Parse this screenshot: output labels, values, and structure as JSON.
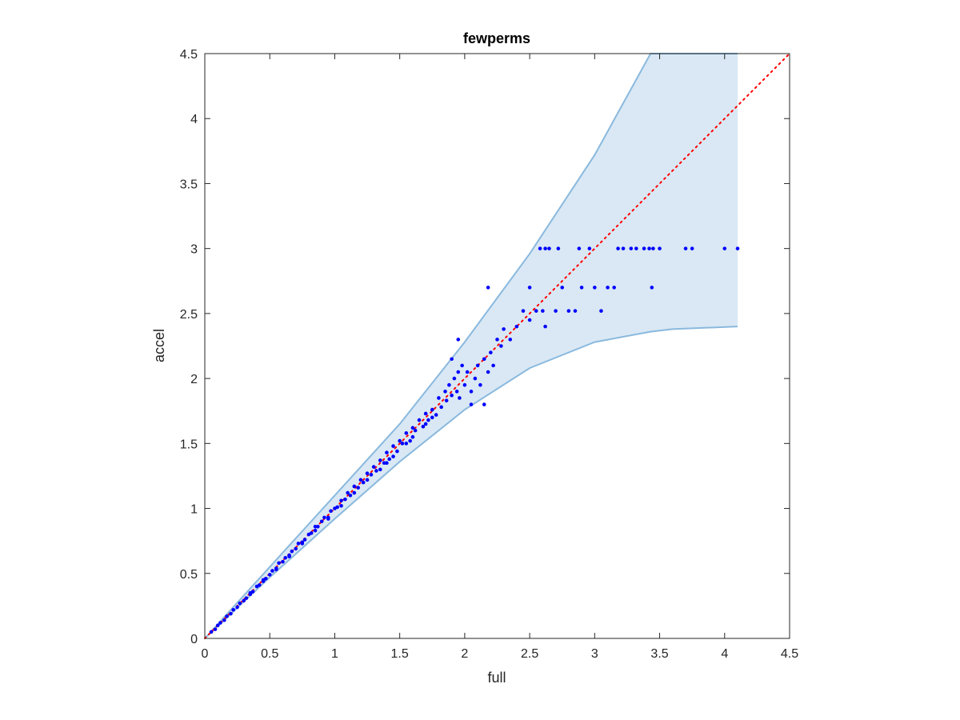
{
  "chart_data": {
    "type": "scatter",
    "title": "fewperms",
    "xlabel": "full",
    "ylabel": "accel",
    "xlim": [
      0,
      4.5
    ],
    "ylim": [
      0,
      4.5
    ],
    "xticks": [
      "0",
      "0.5",
      "1",
      "1.5",
      "2",
      "2.5",
      "3",
      "3.5",
      "4",
      "4.5"
    ],
    "yticks": [
      "0",
      "0.5",
      "1",
      "1.5",
      "2",
      "2.5",
      "3",
      "3.5",
      "4",
      "4.5"
    ],
    "grid": false,
    "reference_line": {
      "style": "dotted",
      "x": [
        0,
        4.5
      ],
      "y": [
        0,
        4.5
      ]
    },
    "band": {
      "x": [
        0,
        0.5,
        1.0,
        1.5,
        2.0,
        2.5,
        3.0,
        3.43,
        3.6,
        4.1
      ],
      "upper": [
        0,
        0.55,
        1.1,
        1.65,
        2.28,
        2.96,
        3.72,
        4.5,
        4.5,
        4.5
      ],
      "lower": [
        0,
        0.47,
        0.92,
        1.36,
        1.76,
        2.08,
        2.28,
        2.36,
        2.38,
        2.4
      ]
    },
    "series": [
      {
        "points": [
          [
            0.05,
            0.05
          ],
          [
            0.08,
            0.07
          ],
          [
            0.1,
            0.1
          ],
          [
            0.12,
            0.12
          ],
          [
            0.15,
            0.14
          ],
          [
            0.17,
            0.17
          ],
          [
            0.2,
            0.19
          ],
          [
            0.22,
            0.22
          ],
          [
            0.25,
            0.24
          ],
          [
            0.27,
            0.27
          ],
          [
            0.3,
            0.29
          ],
          [
            0.32,
            0.31
          ],
          [
            0.35,
            0.35
          ],
          [
            0.37,
            0.36
          ],
          [
            0.4,
            0.4
          ],
          [
            0.42,
            0.41
          ],
          [
            0.45,
            0.45
          ],
          [
            0.47,
            0.46
          ],
          [
            0.5,
            0.49
          ],
          [
            0.52,
            0.52
          ],
          [
            0.55,
            0.54
          ],
          [
            0.57,
            0.58
          ],
          [
            0.6,
            0.59
          ],
          [
            0.62,
            0.62
          ],
          [
            0.65,
            0.63
          ],
          [
            0.67,
            0.67
          ],
          [
            0.7,
            0.69
          ],
          [
            0.72,
            0.73
          ],
          [
            0.75,
            0.74
          ],
          [
            0.77,
            0.76
          ],
          [
            0.8,
            0.8
          ],
          [
            0.82,
            0.81
          ],
          [
            0.85,
            0.86
          ],
          [
            0.87,
            0.86
          ],
          [
            0.9,
            0.9
          ],
          [
            0.92,
            0.93
          ],
          [
            0.95,
            0.93
          ],
          [
            0.97,
            0.98
          ],
          [
            1.0,
            1.0
          ],
          [
            1.02,
            1.01
          ],
          [
            1.05,
            1.06
          ],
          [
            1.08,
            1.07
          ],
          [
            1.1,
            1.12
          ],
          [
            1.12,
            1.1
          ],
          [
            1.15,
            1.17
          ],
          [
            1.18,
            1.16
          ],
          [
            1.2,
            1.22
          ],
          [
            1.22,
            1.2
          ],
          [
            1.25,
            1.27
          ],
          [
            1.28,
            1.26
          ],
          [
            1.3,
            1.32
          ],
          [
            1.32,
            1.29
          ],
          [
            1.35,
            1.37
          ],
          [
            1.38,
            1.35
          ],
          [
            1.4,
            1.43
          ],
          [
            1.42,
            1.38
          ],
          [
            1.45,
            1.48
          ],
          [
            1.48,
            1.44
          ],
          [
            1.5,
            1.52
          ],
          [
            1.52,
            1.5
          ],
          [
            1.55,
            1.58
          ],
          [
            1.58,
            1.52
          ],
          [
            1.6,
            1.62
          ],
          [
            1.62,
            1.6
          ],
          [
            1.65,
            1.68
          ],
          [
            1.68,
            1.63
          ],
          [
            1.7,
            1.73
          ],
          [
            1.72,
            1.68
          ],
          [
            1.75,
            1.76
          ],
          [
            1.78,
            1.72
          ],
          [
            1.8,
            1.85
          ],
          [
            1.82,
            1.78
          ],
          [
            1.85,
            1.9
          ],
          [
            1.86,
            1.83
          ],
          [
            1.88,
            1.95
          ],
          [
            1.9,
            1.87
          ],
          [
            1.92,
            2.0
          ],
          [
            1.94,
            1.9
          ],
          [
            1.95,
            2.05
          ],
          [
            1.96,
            1.85
          ],
          [
            1.98,
            2.1
          ],
          [
            2.0,
            1.95
          ],
          [
            2.02,
            2.05
          ],
          [
            2.05,
            1.9
          ],
          [
            2.08,
            2.0
          ],
          [
            2.1,
            2.1
          ],
          [
            2.12,
            1.95
          ],
          [
            2.15,
            2.15
          ],
          [
            2.18,
            2.05
          ],
          [
            2.2,
            2.2
          ],
          [
            2.22,
            2.1
          ],
          [
            2.25,
            2.3
          ],
          [
            2.28,
            2.25
          ],
          [
            2.3,
            2.38
          ],
          [
            2.35,
            2.3
          ],
          [
            2.4,
            2.4
          ],
          [
            2.45,
            2.52
          ],
          [
            2.5,
            2.45
          ],
          [
            2.55,
            2.52
          ],
          [
            2.6,
            2.52
          ],
          [
            2.62,
            2.4
          ],
          [
            2.7,
            2.52
          ],
          [
            2.75,
            2.7
          ],
          [
            2.8,
            2.52
          ],
          [
            2.85,
            2.52
          ],
          [
            2.9,
            2.7
          ],
          [
            3.0,
            2.7
          ],
          [
            3.05,
            2.52
          ],
          [
            3.1,
            2.7
          ],
          [
            3.15,
            2.7
          ],
          [
            2.18,
            2.7
          ],
          [
            2.5,
            2.7
          ],
          [
            2.58,
            3.0
          ],
          [
            2.62,
            3.0
          ],
          [
            2.65,
            3.0
          ],
          [
            2.72,
            3.0
          ],
          [
            2.88,
            3.0
          ],
          [
            2.96,
            3.0
          ],
          [
            3.18,
            3.0
          ],
          [
            3.22,
            3.0
          ],
          [
            3.28,
            3.0
          ],
          [
            3.32,
            3.0
          ],
          [
            3.38,
            3.0
          ],
          [
            3.42,
            3.0
          ],
          [
            3.45,
            3.0
          ],
          [
            3.5,
            3.0
          ],
          [
            3.7,
            3.0
          ],
          [
            3.75,
            3.0
          ],
          [
            4.0,
            3.0
          ],
          [
            4.1,
            3.0
          ],
          [
            3.44,
            2.7
          ],
          [
            1.95,
            2.3
          ],
          [
            1.9,
            2.15
          ],
          [
            2.05,
            1.8
          ],
          [
            2.15,
            1.8
          ],
          [
            1.7,
            1.65
          ],
          [
            1.75,
            1.7
          ],
          [
            1.6,
            1.55
          ],
          [
            1.55,
            1.5
          ],
          [
            1.45,
            1.4
          ],
          [
            1.4,
            1.35
          ],
          [
            1.35,
            1.3
          ],
          [
            1.25,
            1.22
          ],
          [
            1.15,
            1.12
          ],
          [
            1.05,
            1.02
          ],
          [
            0.95,
            0.92
          ],
          [
            0.85,
            0.83
          ],
          [
            0.75,
            0.73
          ],
          [
            0.65,
            0.64
          ],
          [
            0.55,
            0.53
          ],
          [
            0.45,
            0.44
          ],
          [
            0.35,
            0.34
          ]
        ]
      }
    ]
  }
}
